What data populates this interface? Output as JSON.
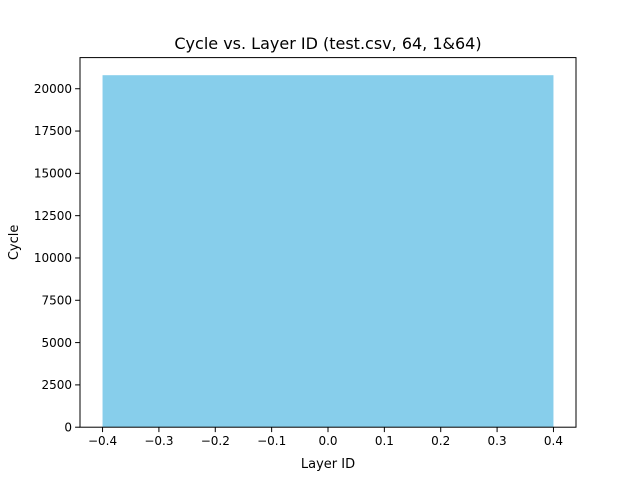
{
  "chart_data": {
    "type": "bar",
    "title": "Cycle vs. Layer ID (test.csv, 64, 1&64)",
    "xlabel": "Layer ID",
    "ylabel": "Cycle",
    "x": [
      0
    ],
    "values": [
      20800
    ],
    "bar_width": 0.8,
    "bar_color": "#87CEEB",
    "xlim": [
      -0.44,
      0.44
    ],
    "ylim": [
      0,
      21840
    ],
    "xticks": [
      -0.4,
      -0.3,
      -0.2,
      -0.1,
      0.0,
      0.1,
      0.2,
      0.3,
      0.4
    ],
    "xtick_labels": [
      "−0.4",
      "−0.3",
      "−0.2",
      "−0.1",
      "0.0",
      "0.1",
      "0.2",
      "0.3",
      "0.4"
    ],
    "yticks": [
      0,
      2500,
      5000,
      7500,
      10000,
      12500,
      15000,
      17500,
      20000
    ],
    "ytick_labels": [
      "0",
      "2500",
      "5000",
      "7500",
      "10000",
      "12500",
      "15000",
      "17500",
      "20000"
    ],
    "grid": false,
    "legend": "none"
  }
}
